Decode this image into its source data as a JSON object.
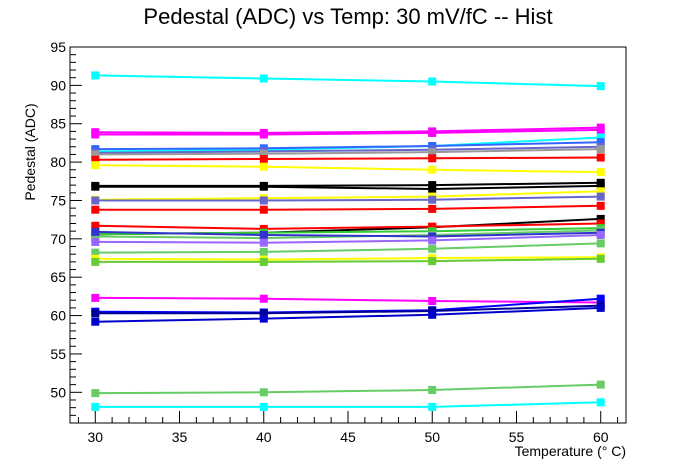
{
  "chart_data": {
    "type": "line",
    "title": "Pedestal (ADC) vs Temp: 30 mV/fC -- Hist",
    "xlabel": "Temperature (° C)",
    "ylabel": "Pedestal (ADC)",
    "xlim": [
      28.5,
      61.5
    ],
    "ylim": [
      46,
      95
    ],
    "xticks": [
      30,
      35,
      40,
      45,
      50,
      55,
      60
    ],
    "yticks": [
      50,
      55,
      60,
      65,
      70,
      75,
      80,
      85,
      90,
      95
    ],
    "x": [
      30,
      40,
      50,
      60
    ],
    "grid": false,
    "legend": "none",
    "marker": "square",
    "series": [
      {
        "color": "#00ffff",
        "values": [
          91.3,
          90.9,
          90.5,
          89.9
        ]
      },
      {
        "color": "#ff00ff",
        "values": [
          83.9,
          83.8,
          84.0,
          84.5
        ]
      },
      {
        "color": "#ff00ff",
        "values": [
          83.6,
          83.6,
          83.8,
          84.2
        ]
      },
      {
        "color": "#00ffff",
        "values": [
          81.4,
          81.6,
          82.1,
          83.2
        ]
      },
      {
        "color": "#3366ff",
        "values": [
          81.7,
          81.8,
          82.1,
          82.6
        ]
      },
      {
        "color": "#6666cc",
        "values": [
          81.2,
          81.4,
          81.6,
          82.0
        ]
      },
      {
        "color": "#999999",
        "values": [
          81.0,
          81.1,
          81.3,
          81.7
        ]
      },
      {
        "color": "#ff0000",
        "values": [
          80.3,
          80.4,
          80.5,
          80.6
        ]
      },
      {
        "color": "#ffff00",
        "values": [
          79.6,
          79.4,
          79.0,
          78.7
        ]
      },
      {
        "color": "#000000",
        "values": [
          76.9,
          76.9,
          77.0,
          77.3
        ]
      },
      {
        "color": "#000000",
        "values": [
          76.8,
          76.8,
          76.5,
          76.9
        ]
      },
      {
        "color": "#ffff00",
        "values": [
          75.1,
          75.3,
          75.5,
          76.2
        ]
      },
      {
        "color": "#6666cc",
        "values": [
          75.0,
          75.0,
          75.1,
          75.5
        ]
      },
      {
        "color": "#ff0000",
        "values": [
          73.8,
          73.8,
          73.9,
          74.3
        ]
      },
      {
        "color": "#000000",
        "values": [
          70.6,
          70.8,
          71.5,
          72.6
        ]
      },
      {
        "color": "#ff0000",
        "values": [
          71.7,
          71.3,
          71.6,
          72.0
        ]
      },
      {
        "color": "#33cc33",
        "values": [
          70.6,
          70.8,
          71.0,
          71.4
        ]
      },
      {
        "color": "#66cc66",
        "values": [
          70.3,
          70.1,
          70.5,
          71.1
        ]
      },
      {
        "color": "#3333cc",
        "values": [
          70.9,
          70.5,
          70.3,
          70.8
        ]
      },
      {
        "color": "#9966ff",
        "values": [
          69.6,
          69.5,
          69.8,
          70.5
        ]
      },
      {
        "color": "#66cc66",
        "values": [
          68.2,
          68.3,
          68.7,
          69.4
        ]
      },
      {
        "color": "#ffff00",
        "values": [
          67.4,
          67.3,
          67.5,
          67.6
        ]
      },
      {
        "color": "#66cc33",
        "values": [
          67.0,
          67.0,
          67.1,
          67.4
        ]
      },
      {
        "color": "#ff00ff",
        "values": [
          62.3,
          62.2,
          61.9,
          61.7
        ]
      },
      {
        "color": "#0000ff",
        "values": [
          60.5,
          60.4,
          60.7,
          62.2
        ]
      },
      {
        "color": "#000099",
        "values": [
          60.3,
          60.3,
          60.6,
          61.3
        ]
      },
      {
        "color": "#0000cc",
        "values": [
          59.2,
          59.6,
          60.1,
          61.0
        ]
      },
      {
        "color": "#66cc66",
        "values": [
          49.9,
          50.0,
          50.3,
          51.0
        ]
      },
      {
        "color": "#00ffff",
        "values": [
          48.1,
          48.1,
          48.1,
          48.7
        ]
      }
    ]
  }
}
